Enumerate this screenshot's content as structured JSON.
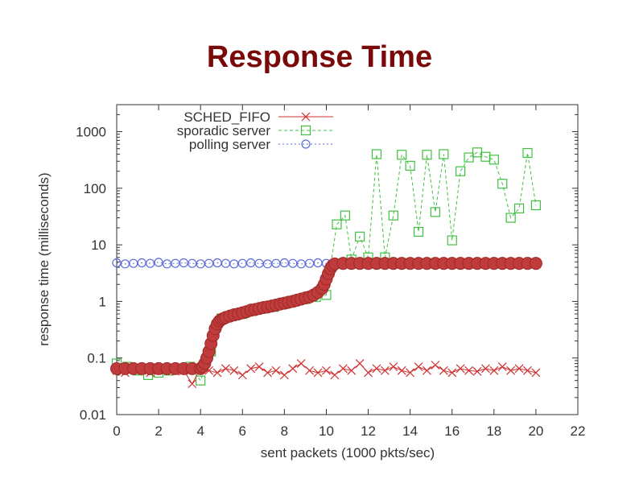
{
  "slide": {
    "title": "Response Time"
  },
  "chart_data": {
    "type": "scatter",
    "title": "",
    "xlabel": "sent packets (1000 pkts/sec)",
    "ylabel": "response time (milliseconds)",
    "xlim": [
      0,
      22
    ],
    "ylim": [
      0.01,
      3000
    ],
    "yscale": "log",
    "grid": false,
    "legend": "top-left",
    "x_ticks": [
      0,
      2,
      4,
      6,
      8,
      10,
      12,
      14,
      16,
      18,
      20,
      22
    ],
    "y_ticks": [
      0.01,
      0.1,
      1,
      10,
      100,
      1000
    ],
    "y_tick_labels": [
      "0.01",
      "0.1",
      "1",
      "10",
      "100",
      "1000"
    ],
    "series": [
      {
        "name": "SCHED_FIFO",
        "marker": "x",
        "color": "#d03030",
        "line": "solid",
        "x": [
          0,
          0.4,
          0.8,
          1.2,
          1.6,
          2,
          2.4,
          2.8,
          3.2,
          3.6,
          4,
          4.4,
          4.8,
          5.2,
          5.6,
          6,
          6.4,
          6.8,
          7.2,
          7.6,
          8,
          8.4,
          8.8,
          9.2,
          9.6,
          10,
          10.4,
          10.8,
          11.2,
          11.6,
          12,
          12.4,
          12.8,
          13.2,
          13.6,
          14,
          14.4,
          14.8,
          15.2,
          15.6,
          16,
          16.4,
          16.8,
          17.2,
          17.6,
          18,
          18.4,
          18.8,
          19.2,
          19.6,
          20
        ],
        "y": [
          0.06,
          0.055,
          0.065,
          0.06,
          0.055,
          0.06,
          0.065,
          0.058,
          0.06,
          0.035,
          0.065,
          0.06,
          0.055,
          0.065,
          0.06,
          0.05,
          0.065,
          0.07,
          0.055,
          0.06,
          0.05,
          0.065,
          0.08,
          0.06,
          0.055,
          0.06,
          0.05,
          0.065,
          0.06,
          0.08,
          0.055,
          0.065,
          0.06,
          0.07,
          0.06,
          0.055,
          0.07,
          0.06,
          0.075,
          0.06,
          0.055,
          0.065,
          0.06,
          0.058,
          0.065,
          0.06,
          0.07,
          0.06,
          0.065,
          0.06,
          0.055
        ]
      },
      {
        "name": "sporadic server",
        "marker": "square",
        "color": "#40c040",
        "line": "dashed",
        "x": [
          0,
          0.5,
          1,
          1.5,
          2,
          2.5,
          3,
          3.5,
          4,
          4.5,
          5,
          5.5,
          6,
          6.5,
          7,
          7.5,
          8,
          8.5,
          9,
          9.5,
          10,
          10.5,
          10.9,
          11.2,
          11.6,
          12,
          12.4,
          12.8,
          13.2,
          13.6,
          14,
          14.4,
          14.8,
          15.2,
          15.6,
          16,
          16.4,
          16.8,
          17.2,
          17.6,
          18,
          18.4,
          18.8,
          19.2,
          19.6,
          20
        ],
        "y": [
          0.08,
          0.07,
          0.06,
          0.05,
          0.055,
          0.06,
          0.065,
          0.07,
          0.04,
          0.13,
          0.5,
          0.55,
          0.6,
          0.7,
          0.75,
          0.8,
          0.9,
          1.0,
          1.1,
          1.2,
          1.3,
          23,
          33,
          5.5,
          14,
          6,
          400,
          6,
          33,
          390,
          250,
          17,
          390,
          38,
          400,
          12,
          200,
          350,
          430,
          360,
          320,
          120,
          30,
          44,
          420,
          50
        ]
      },
      {
        "name": "polling server",
        "marker": "circle",
        "color": "#5a6ad8",
        "line": "dotted",
        "x": [
          0,
          0.4,
          0.8,
          1.2,
          1.6,
          2,
          2.4,
          2.8,
          3.2,
          3.6,
          4,
          4.4,
          4.8,
          5.2,
          5.6,
          6,
          6.4,
          6.8,
          7.2,
          7.6,
          8,
          8.4,
          8.8,
          9.2,
          9.6,
          10,
          10.4,
          10.8,
          11.2,
          11.6,
          12,
          12.4,
          12.8,
          13.2,
          13.6,
          14,
          14.4,
          14.8,
          15.2,
          15.6,
          16,
          16.4,
          16.8,
          17.2,
          17.6,
          18,
          18.4,
          18.8,
          19.2,
          19.6,
          20
        ],
        "y": [
          4.8,
          4.6,
          4.7,
          4.8,
          4.7,
          4.9,
          4.6,
          4.7,
          4.8,
          4.7,
          4.6,
          4.7,
          4.8,
          4.7,
          4.6,
          4.7,
          4.8,
          4.7,
          4.6,
          4.7,
          4.8,
          4.7,
          4.6,
          4.7,
          4.8,
          4.7,
          4.6,
          4.7,
          4.8,
          4.7,
          4.6,
          4.7,
          4.8,
          4.7,
          4.6,
          4.7,
          4.8,
          4.7,
          4.6,
          4.7,
          4.8,
          4.7,
          4.6,
          4.7,
          4.8,
          4.7,
          4.6,
          4.7,
          4.8,
          4.7,
          4.6
        ]
      },
      {
        "name": "",
        "marker": "circle-filled",
        "color": "#c03c3c",
        "line": "none",
        "x": [
          0,
          0.4,
          0.8,
          1.2,
          1.6,
          2,
          2.4,
          2.8,
          3.2,
          3.6,
          4,
          4.1,
          4.2,
          4.3,
          4.4,
          4.5,
          4.6,
          4.7,
          4.8,
          4.9,
          5,
          5.1,
          5.2,
          5.4,
          5.6,
          5.8,
          6,
          6.2,
          6.4,
          6.6,
          6.8,
          7,
          7.2,
          7.4,
          7.6,
          7.8,
          8,
          8.2,
          8.4,
          8.6,
          8.8,
          9,
          9.2,
          9.4,
          9.6,
          9.8,
          9.9,
          10,
          10.1,
          10.2,
          10.3,
          10.4,
          10.8,
          11.2,
          11.6,
          12,
          12.4,
          12.8,
          13.2,
          13.6,
          14,
          14.4,
          14.8,
          15.2,
          15.6,
          16,
          16.4,
          16.8,
          17.2,
          17.6,
          18,
          18.4,
          18.8,
          19.2,
          19.6,
          20
        ],
        "y": [
          0.065,
          0.065,
          0.065,
          0.065,
          0.065,
          0.065,
          0.065,
          0.065,
          0.065,
          0.065,
          0.065,
          0.07,
          0.08,
          0.1,
          0.13,
          0.18,
          0.25,
          0.33,
          0.4,
          0.45,
          0.48,
          0.5,
          0.52,
          0.55,
          0.58,
          0.6,
          0.63,
          0.66,
          0.7,
          0.72,
          0.75,
          0.78,
          0.8,
          0.83,
          0.86,
          0.9,
          0.93,
          0.97,
          1.0,
          1.05,
          1.1,
          1.15,
          1.2,
          1.3,
          1.45,
          1.7,
          2.0,
          2.5,
          3.1,
          3.8,
          4.3,
          4.6,
          4.7,
          4.7,
          4.7,
          4.7,
          4.7,
          4.7,
          4.7,
          4.7,
          4.7,
          4.7,
          4.7,
          4.7,
          4.7,
          4.7,
          4.7,
          4.7,
          4.7,
          4.7,
          4.7,
          4.7,
          4.7,
          4.7,
          4.7,
          4.7
        ]
      }
    ]
  }
}
